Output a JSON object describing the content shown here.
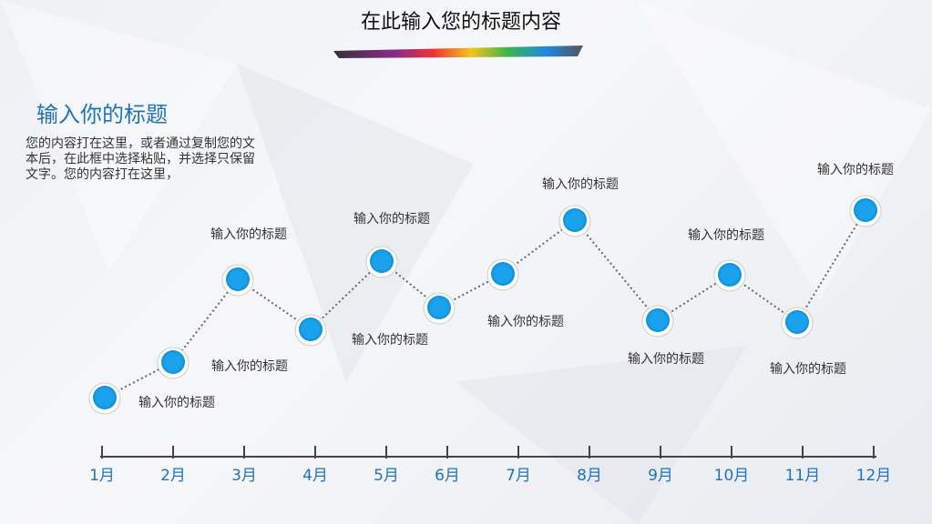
{
  "header": {
    "title": "在此输入您的标题内容"
  },
  "intro": {
    "heading": "输入你的标题",
    "text": "您的内容打在这里，或者通过复制您的文本后，在此框中选择粘贴，并选择只保留文字。您的内容打在这里，"
  },
  "timeline": {
    "months": [
      "1月",
      "2月",
      "3月",
      "4月",
      "5月",
      "6月",
      "7月",
      "8月",
      "9月",
      "10月",
      "11月",
      "12月"
    ],
    "labels": [
      "输入你的标题",
      "输入你的标题",
      "输入你的标题",
      "输入你的标题",
      "输入你的标题",
      "输入你的标题",
      "输入你的标题",
      "输入你的标题",
      "输入你的标题",
      "输入你的标题",
      "输入你的标题"
    ]
  }
}
